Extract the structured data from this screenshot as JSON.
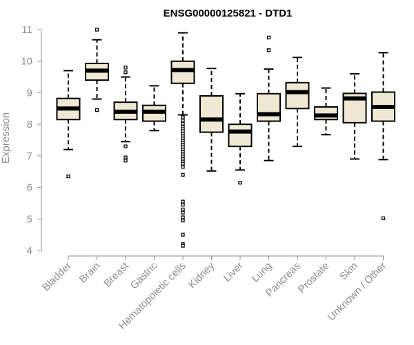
{
  "chart_data": {
    "type": "boxplot",
    "title": "ENSG00000125821 - DTD1",
    "ylabel": "Expression",
    "xlabel": "",
    "ylim": [
      4,
      11
    ],
    "yticks": [
      4,
      5,
      6,
      7,
      8,
      9,
      10,
      11
    ],
    "grid": false,
    "colors": {
      "box_fill": "#efe8d2",
      "stroke": "#000000",
      "axis": "#8c8c8c",
      "title": "#000000"
    },
    "categories": [
      "Bladder",
      "Brain",
      "Breast",
      "Gastric",
      "Hematopoietic cells",
      "Kidney",
      "Liver",
      "Lung",
      "Pancreas",
      "Prostate",
      "Skin",
      "Unknown / Other"
    ],
    "boxes": [
      {
        "category": "Bladder",
        "whisker_low": 7.2,
        "q1": 8.15,
        "median": 8.5,
        "q3": 8.82,
        "whisker_high": 9.7,
        "outliers": [
          6.35
        ]
      },
      {
        "category": "Brain",
        "whisker_low": 8.8,
        "q1": 9.4,
        "median": 9.7,
        "q3": 9.93,
        "whisker_high": 10.68,
        "outliers": [
          8.45,
          11.0
        ]
      },
      {
        "category": "Breast",
        "whisker_low": 7.45,
        "q1": 8.15,
        "median": 8.4,
        "q3": 8.7,
        "whisker_high": 9.5,
        "outliers": [
          7.3,
          6.95,
          6.85,
          9.65,
          9.8
        ]
      },
      {
        "category": "Gastric",
        "whisker_low": 7.8,
        "q1": 8.1,
        "median": 8.4,
        "q3": 8.6,
        "whisker_high": 9.22,
        "outliers": []
      },
      {
        "category": "Hematopoietic cells",
        "whisker_low": 8.3,
        "q1": 9.3,
        "median": 9.72,
        "q3": 10.0,
        "whisker_high": 10.9,
        "outliers": [
          8.22,
          8.12,
          8.02,
          7.92,
          7.85,
          7.78,
          7.7,
          7.62,
          7.55,
          7.48,
          7.42,
          7.35,
          7.28,
          7.2,
          7.12,
          7.05,
          6.98,
          6.9,
          6.82,
          6.75,
          6.65,
          6.4,
          5.55,
          5.45,
          5.3,
          5.2,
          5.05,
          4.95,
          4.5,
          4.2,
          4.15
        ]
      },
      {
        "category": "Kidney",
        "whisker_low": 6.52,
        "q1": 7.75,
        "median": 8.15,
        "q3": 8.9,
        "whisker_high": 9.77,
        "outliers": []
      },
      {
        "category": "Liver",
        "whisker_low": 6.55,
        "q1": 7.3,
        "median": 7.77,
        "q3": 8.0,
        "whisker_high": 8.97,
        "outliers": [
          6.15
        ]
      },
      {
        "category": "Lung",
        "whisker_low": 6.85,
        "q1": 8.1,
        "median": 8.32,
        "q3": 8.97,
        "whisker_high": 9.75,
        "outliers": [
          10.35,
          10.75
        ]
      },
      {
        "category": "Pancreas",
        "whisker_low": 7.3,
        "q1": 8.5,
        "median": 9.02,
        "q3": 9.32,
        "whisker_high": 10.12,
        "outliers": []
      },
      {
        "category": "Prostate",
        "whisker_low": 7.67,
        "q1": 8.15,
        "median": 8.28,
        "q3": 8.55,
        "whisker_high": 9.15,
        "outliers": []
      },
      {
        "category": "Skin",
        "whisker_low": 6.9,
        "q1": 8.05,
        "median": 8.82,
        "q3": 8.98,
        "whisker_high": 9.6,
        "outliers": []
      },
      {
        "category": "Unknown / Other",
        "whisker_low": 6.88,
        "q1": 8.1,
        "median": 8.55,
        "q3": 9.02,
        "whisker_high": 10.27,
        "outliers": [
          5.02
        ]
      }
    ]
  }
}
